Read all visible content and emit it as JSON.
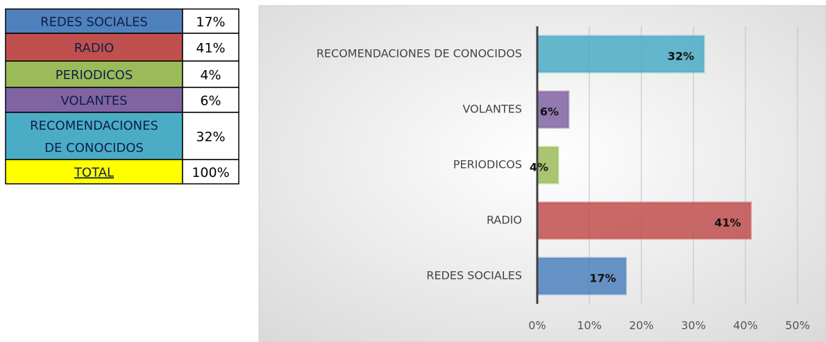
{
  "table": {
    "rows": [
      [
        "REDES SOCIALES",
        "17%"
      ],
      [
        "RADIO",
        "41%"
      ],
      [
        "PERIODICOS",
        "4%"
      ],
      [
        "VOLANTES",
        "6%"
      ],
      [
        "RECOMENDACIONES DE CONOCIDOS",
        "32%"
      ],
      [
        "TOTAL",
        "100%"
      ]
    ],
    "colors": [
      "#4f81bd",
      "#c0504d",
      "#9bbb59",
      "#8064a2",
      "#4bacc6",
      "#ffff00"
    ]
  },
  "chart_data": {
    "type": "bar",
    "orientation": "horizontal",
    "categories": [
      "REDES SOCIALES",
      "RADIO",
      "PERIODICOS",
      "VOLANTES",
      "RECOMENDACIONES DE CONOCIDOS"
    ],
    "values": [
      17,
      41,
      4,
      6,
      32
    ],
    "value_labels": [
      "17%",
      "41%",
      "4%",
      "6%",
      "32%"
    ],
    "colors": [
      "#4f81bd",
      "#c0504d",
      "#9bbb59",
      "#8064a2",
      "#4bacc6"
    ],
    "xlim": [
      0,
      50
    ],
    "xticks": [
      {
        "value": 0,
        "label": "0%"
      },
      {
        "value": 10,
        "label": "10%"
      },
      {
        "value": 20,
        "label": "20%"
      },
      {
        "value": 30,
        "label": "30%"
      },
      {
        "value": 40,
        "label": "40%"
      },
      {
        "value": 50,
        "label": "50%"
      }
    ],
    "grid": true
  }
}
